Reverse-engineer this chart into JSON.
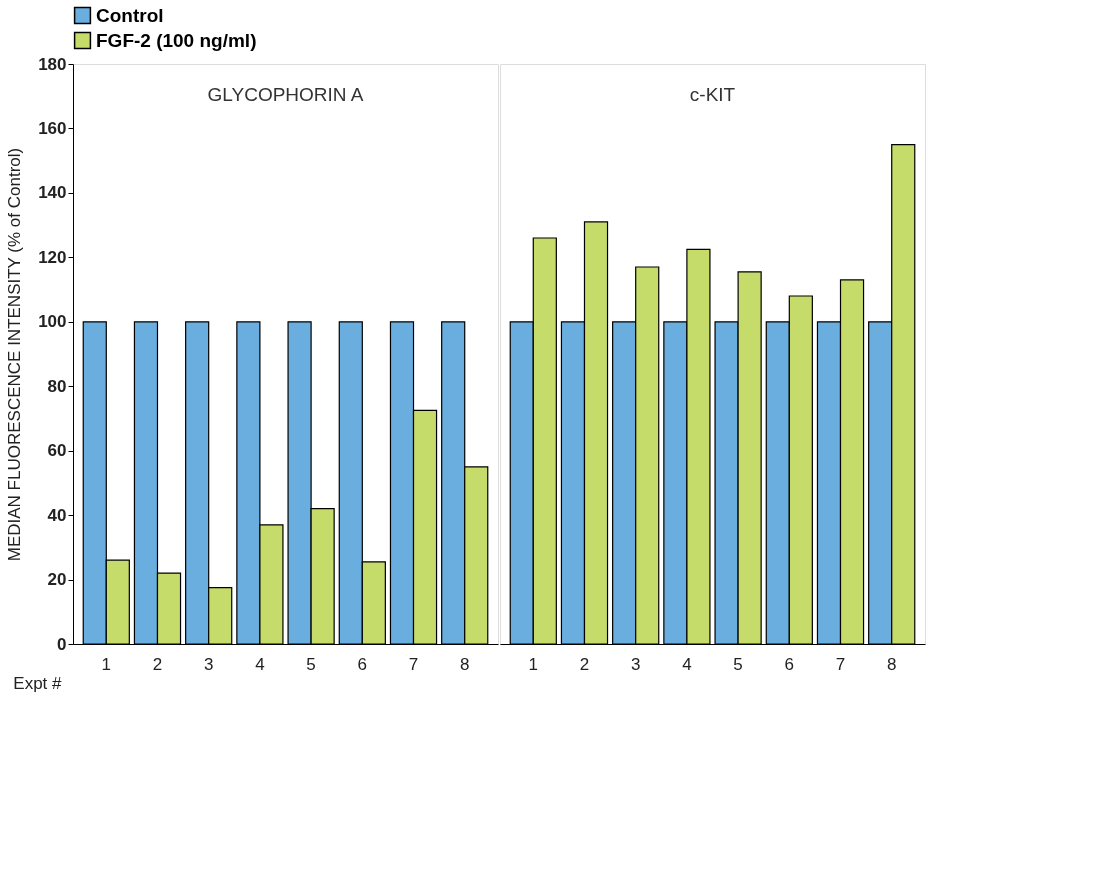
{
  "chart_data": [
    {
      "type": "bar",
      "title": "GLYCOPHORIN A",
      "xlabel": "Expt #",
      "ylabel": "MEDIAN FLUORESCENCE INTENSITY (% of Control)",
      "categories": [
        "1",
        "2",
        "3",
        "4",
        "5",
        "6",
        "7",
        "8"
      ],
      "series": [
        {
          "name": "Control",
          "color": "#6aaee0",
          "values": [
            100,
            100,
            100,
            100,
            100,
            100,
            100,
            100
          ]
        },
        {
          "name": "FGF-2 (100 ng/ml)",
          "color": "#c5dc6a",
          "values": [
            26,
            22,
            17.5,
            37,
            42,
            25.5,
            72.5,
            55
          ]
        }
      ],
      "ylim": [
        0,
        180
      ],
      "yticks": [
        0,
        20,
        40,
        60,
        80,
        100,
        120,
        140,
        160,
        180
      ],
      "grid": false,
      "legend": "top"
    },
    {
      "type": "bar",
      "title": "c-KIT",
      "categories": [
        "1",
        "2",
        "3",
        "4",
        "5",
        "6",
        "7",
        "8"
      ],
      "series": [
        {
          "color": "#6aaee0",
          "values": [
            100,
            100,
            100,
            100,
            100,
            100,
            100,
            100
          ]
        },
        {
          "color": "#c5dc6a",
          "values": [
            126,
            131,
            117,
            122.5,
            115.5,
            108,
            113,
            155
          ]
        }
      ],
      "ylim": [
        0,
        180
      ],
      "yticks": [
        0,
        20,
        40,
        60,
        80,
        100,
        120,
        140,
        160,
        180
      ],
      "grid": false,
      "legend": false,
      "tick_labels": "x"
    }
  ]
}
